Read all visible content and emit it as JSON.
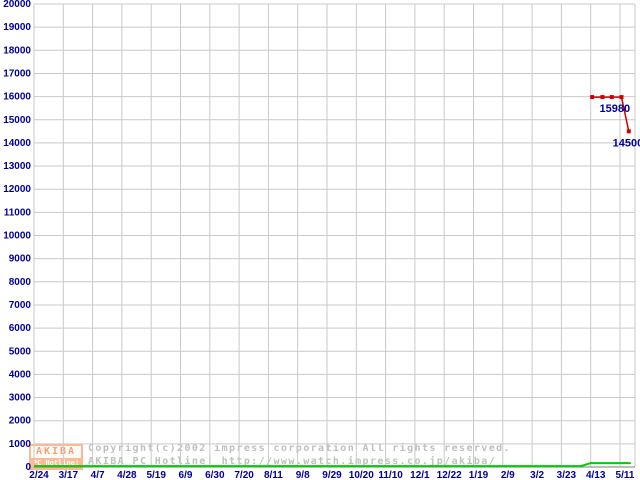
{
  "watermark": {
    "line1": "Copyright(c)2002 impress corporation All rights reserved.",
    "line2": "AKIBA PC Hotline!  http://www.watch.impress.co.jp/akiba/",
    "logo_top": "AKIBA",
    "logo_bottom": "PC Hotline!"
  },
  "chart_data": {
    "type": "line",
    "title": "",
    "xlabel": "",
    "ylabel": "",
    "x_tick_labels": [
      "2/24",
      "3/17",
      "4/7",
      "4/28",
      "5/19",
      "6/9",
      "6/30",
      "7/20",
      "8/11",
      "9/8",
      "9/29",
      "10/20",
      "11/10",
      "12/1",
      "12/22",
      "1/19",
      "2/9",
      "3/2",
      "3/23",
      "4/13",
      "5/11"
    ],
    "ylim": [
      0,
      20000
    ],
    "y_tick_step": 1000,
    "grid": true,
    "legend": "none",
    "colors": {
      "grid": "#c9c9c9",
      "axis": "#7d7d7d",
      "tick_labels": "#000099",
      "series_price": "#cc0000",
      "series_secondary": "#00cc00",
      "annotation": "#000099",
      "watermark_text": "#bfbfbf",
      "logo_orange": "#ffb08a"
    },
    "series": [
      {
        "name": "price-red",
        "color": "#cc0000",
        "marker": "square",
        "points": [
          {
            "xi": 19.05,
            "v": 15980
          },
          {
            "xi": 19.4,
            "v": 15980
          },
          {
            "xi": 19.72,
            "v": 15980
          },
          {
            "xi": 20.05,
            "v": 15980
          },
          {
            "xi": 20.3,
            "v": 14500
          }
        ]
      },
      {
        "name": "secondary-green",
        "color": "#00cc00",
        "marker": "none",
        "points": [
          {
            "xi": 0.0,
            "v": 40
          },
          {
            "xi": 18.67,
            "v": 40
          },
          {
            "xi": 19.0,
            "v": 170
          },
          {
            "xi": 20.37,
            "v": 170
          }
        ]
      }
    ],
    "annotations": [
      {
        "text": "15980",
        "xi": 19.3,
        "v": 15980
      },
      {
        "text": "14500",
        "xi": 19.75,
        "v": 14500
      }
    ]
  }
}
